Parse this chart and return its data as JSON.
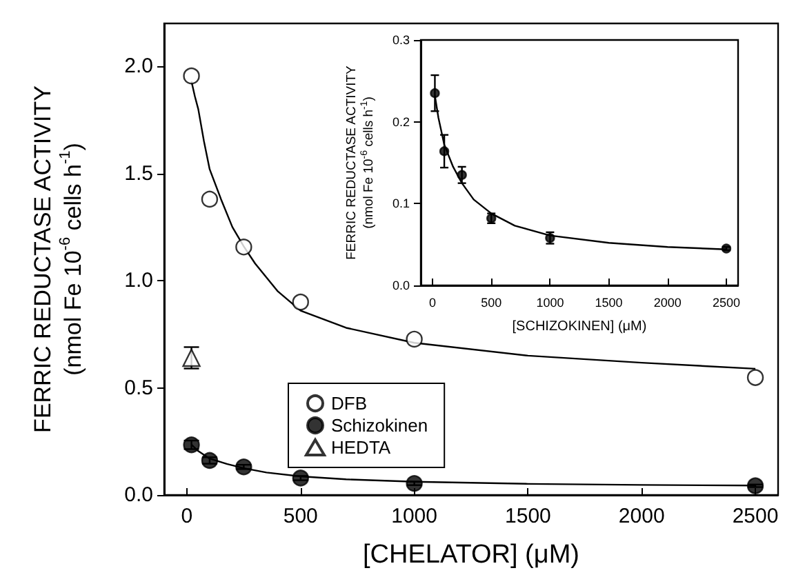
{
  "chart_data": [
    {
      "type": "scatter",
      "xlabel": "[CHELATOR] (μM)",
      "ylabel": "FERRIC REDUCTASE ACTIVITY\n(nmol Fe 10$^{-6}$ cells h$^{-1}$)",
      "xlim": [
        -100,
        2600
      ],
      "ylim": [
        0,
        2.2
      ],
      "xticks": [
        0,
        500,
        1000,
        1500,
        2000,
        2500
      ],
      "yticks": [
        {
          "value": 0,
          "label": "0.0"
        },
        {
          "value": 0.5,
          "label": "0.5"
        },
        {
          "value": 1,
          "label": "1.0"
        },
        {
          "value": 1.5,
          "label": "1.5"
        },
        {
          "value": 2,
          "label": "2.0"
        }
      ],
      "grid": false,
      "legend": "bottom left",
      "series": [
        {
          "name": "DFB",
          "marker": "circle",
          "color": "#ffffff",
          "x": [
            20,
            100,
            250,
            500,
            1000,
            2500
          ],
          "values": [
            1.955,
            1.38,
            1.157,
            0.9,
            0.727,
            0.548
          ]
        },
        {
          "name": "Schizokinen",
          "marker": "circle",
          "color": "#000000",
          "x": [
            20,
            100,
            250,
            500,
            1000,
            2500
          ],
          "values": [
            0.234,
            0.161,
            0.131,
            0.079,
            0.054,
            0.043
          ],
          "errors": [
            0.02,
            0.015,
            0.01,
            0.01,
            0.008,
            0.006
          ]
        },
        {
          "name": "HEDTA",
          "marker": "triangle",
          "color": "#ffffff",
          "x": [
            20
          ],
          "values": [
            0.64
          ],
          "errors": [
            0.05
          ]
        },
        {
          "type": "line",
          "marker": "none",
          "color": "#000000",
          "x": [
            20,
            35,
            50,
            75,
            100,
            150,
            200,
            250,
            300,
            400,
            500,
            700,
            1000,
            1500,
            2000,
            2500
          ],
          "values": [
            1.93,
            1.86,
            1.8,
            1.65,
            1.52,
            1.38,
            1.25,
            1.16,
            1.08,
            0.95,
            0.86,
            0.78,
            0.71,
            0.65,
            0.617,
            0.589
          ]
        },
        {
          "type": "line",
          "marker": "none",
          "color": "#000000",
          "x": [
            20,
            50,
            100,
            175,
            250,
            350,
            500,
            700,
            1000,
            1500,
            2000,
            2500
          ],
          "values": [
            0.235,
            0.205,
            0.17,
            0.145,
            0.125,
            0.105,
            0.087,
            0.073,
            0.062,
            0.052,
            0.047,
            0.044
          ]
        }
      ]
    },
    {
      "type": "scatter",
      "xlabel": "[SCHIZOKINEN] (μM)",
      "ylabel": "FERRIC REDUCTASE ACTIVITY\n(nmol Fe 10$^{-6}$ cells h$^{-1}$)",
      "xlim": [
        -100,
        2600
      ],
      "ylim": [
        0,
        0.3
      ],
      "xticks": [
        0,
        500,
        1000,
        1500,
        2000,
        2500
      ],
      "yticks": [
        {
          "value": 0,
          "label": "0.0"
        },
        {
          "value": 0.1,
          "label": "0.1"
        },
        {
          "value": 0.2,
          "label": "0.2"
        },
        {
          "value": 0.3,
          "label": "0.3"
        }
      ],
      "grid": false,
      "legend": false,
      "series": [
        {
          "marker": "circle",
          "color": "#000000",
          "x": [
            20,
            100,
            250,
            500,
            1000,
            2500
          ],
          "values": [
            0.235,
            0.164,
            0.135,
            0.082,
            0.058,
            0.045
          ],
          "errors": [
            0.022,
            0.02,
            0.01,
            0.006,
            0.007,
            0.002
          ]
        },
        {
          "type": "line",
          "marker": "none",
          "color": "#000000",
          "x": [
            20,
            50,
            100,
            175,
            250,
            350,
            500,
            700,
            1000,
            1500,
            2000,
            2500
          ],
          "values": [
            0.232,
            0.205,
            0.172,
            0.145,
            0.125,
            0.105,
            0.088,
            0.073,
            0.061,
            0.052,
            0.047,
            0.044
          ]
        }
      ]
    }
  ]
}
